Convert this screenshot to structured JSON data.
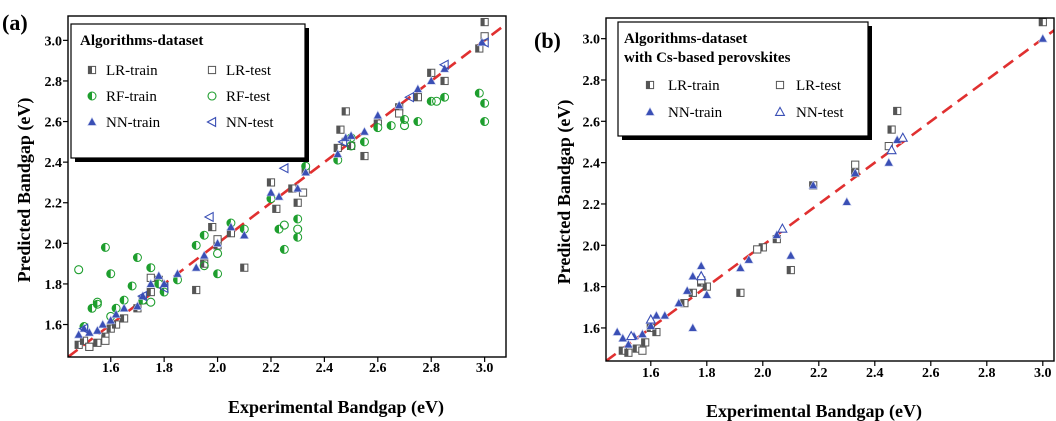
{
  "chart_data": [
    {
      "type": "scatter",
      "panel_label": "(a)",
      "xlabel": "Experimental Bandgap (eV)",
      "ylabel": "Predicted Bandgap (eV)",
      "xlim": [
        1.44,
        3.08
      ],
      "ylim": [
        1.44,
        3.12
      ],
      "xticks": [
        "1.6",
        "1.8",
        "2.0",
        "2.2",
        "2.4",
        "2.6",
        "2.8",
        "3.0"
      ],
      "yticks": [
        "1.6",
        "1.8",
        "2.0",
        "2.2",
        "2.4",
        "2.6",
        "2.8",
        "3.0"
      ],
      "reference_line": "y = x (red dashed)",
      "legend": {
        "title": "Algorithms-dataset",
        "placement": "top-left"
      },
      "series": [
        {
          "name": "LR-train",
          "marker": "half-square",
          "color": "#555555",
          "points": [
            [
              1.48,
              1.5
            ],
            [
              1.5,
              1.52
            ],
            [
              1.52,
              1.49
            ],
            [
              1.55,
              1.51
            ],
            [
              1.58,
              1.54
            ],
            [
              1.6,
              1.58
            ],
            [
              1.62,
              1.6
            ],
            [
              1.65,
              1.63
            ],
            [
              1.7,
              1.68
            ],
            [
              1.72,
              1.72
            ],
            [
              1.75,
              1.76
            ],
            [
              1.78,
              1.82
            ],
            [
              1.8,
              1.78
            ],
            [
              1.92,
              1.77
            ],
            [
              1.95,
              1.9
            ],
            [
              1.98,
              2.08
            ],
            [
              2.0,
              1.99
            ],
            [
              2.05,
              2.05
            ],
            [
              2.1,
              1.88
            ],
            [
              2.2,
              2.3
            ],
            [
              2.22,
              2.17
            ],
            [
              2.28,
              2.27
            ],
            [
              2.3,
              2.2
            ],
            [
              2.33,
              2.36
            ],
            [
              2.45,
              2.47
            ],
            [
              2.46,
              2.56
            ],
            [
              2.48,
              2.65
            ],
            [
              2.5,
              2.48
            ],
            [
              2.55,
              2.43
            ],
            [
              2.6,
              2.59
            ],
            [
              2.68,
              2.67
            ],
            [
              2.75,
              2.72
            ],
            [
              2.8,
              2.84
            ],
            [
              2.85,
              2.8
            ],
            [
              2.98,
              2.96
            ],
            [
              3.0,
              3.09
            ]
          ]
        },
        {
          "name": "LR-test",
          "marker": "open-square",
          "color": "#555555",
          "points": [
            [
              1.52,
              1.49
            ],
            [
              1.58,
              1.52
            ],
            [
              1.75,
              1.83
            ],
            [
              1.8,
              1.79
            ],
            [
              2.0,
              2.02
            ],
            [
              2.32,
              2.25
            ],
            [
              2.48,
              2.5
            ],
            [
              2.68,
              2.64
            ],
            [
              3.0,
              3.02
            ]
          ]
        },
        {
          "name": "RF-train",
          "marker": "half-circle",
          "color": "#1e9e2e",
          "points": [
            [
              1.5,
              1.59
            ],
            [
              1.53,
              1.68
            ],
            [
              1.55,
              1.7
            ],
            [
              1.58,
              1.98
            ],
            [
              1.6,
              1.85
            ],
            [
              1.62,
              1.68
            ],
            [
              1.65,
              1.72
            ],
            [
              1.68,
              1.79
            ],
            [
              1.7,
              1.93
            ],
            [
              1.72,
              1.72
            ],
            [
              1.75,
              1.88
            ],
            [
              1.78,
              1.8
            ],
            [
              1.8,
              1.76
            ],
            [
              1.85,
              1.82
            ],
            [
              1.92,
              1.99
            ],
            [
              1.95,
              2.04
            ],
            [
              2.0,
              1.85
            ],
            [
              2.05,
              2.1
            ],
            [
              2.1,
              2.07
            ],
            [
              2.2,
              2.22
            ],
            [
              2.23,
              2.07
            ],
            [
              2.25,
              1.97
            ],
            [
              2.3,
              2.03
            ],
            [
              2.3,
              2.12
            ],
            [
              2.33,
              2.38
            ],
            [
              2.45,
              2.41
            ],
            [
              2.5,
              2.52
            ],
            [
              2.55,
              2.5
            ],
            [
              2.6,
              2.57
            ],
            [
              2.65,
              2.58
            ],
            [
              2.7,
              2.61
            ],
            [
              2.75,
              2.6
            ],
            [
              2.8,
              2.7
            ],
            [
              2.85,
              2.72
            ],
            [
              2.98,
              2.74
            ],
            [
              3.0,
              2.6
            ],
            [
              3.0,
              2.69
            ]
          ]
        },
        {
          "name": "RF-test",
          "marker": "open-circle",
          "color": "#1e9e2e",
          "points": [
            [
              1.48,
              1.87
            ],
            [
              1.55,
              1.71
            ],
            [
              1.6,
              1.64
            ],
            [
              1.75,
              1.71
            ],
            [
              1.95,
              1.89
            ],
            [
              2.0,
              1.95
            ],
            [
              2.25,
              2.09
            ],
            [
              2.3,
              2.07
            ],
            [
              2.5,
              2.48
            ],
            [
              2.7,
              2.58
            ],
            [
              2.82,
              2.7
            ]
          ]
        },
        {
          "name": "NN-train",
          "marker": "filled-triangle",
          "color": "#3a4fb5",
          "points": [
            [
              1.48,
              1.55
            ],
            [
              1.5,
              1.58
            ],
            [
              1.52,
              1.56
            ],
            [
              1.55,
              1.57
            ],
            [
              1.57,
              1.6
            ],
            [
              1.6,
              1.62
            ],
            [
              1.62,
              1.65
            ],
            [
              1.65,
              1.68
            ],
            [
              1.7,
              1.69
            ],
            [
              1.72,
              1.74
            ],
            [
              1.75,
              1.8
            ],
            [
              1.78,
              1.84
            ],
            [
              1.8,
              1.8
            ],
            [
              1.85,
              1.85
            ],
            [
              1.92,
              1.88
            ],
            [
              1.95,
              1.94
            ],
            [
              2.0,
              2.0
            ],
            [
              2.05,
              2.08
            ],
            [
              2.1,
              2.04
            ],
            [
              2.2,
              2.25
            ],
            [
              2.23,
              2.23
            ],
            [
              2.3,
              2.27
            ],
            [
              2.33,
              2.35
            ],
            [
              2.45,
              2.44
            ],
            [
              2.48,
              2.52
            ],
            [
              2.5,
              2.53
            ],
            [
              2.55,
              2.55
            ],
            [
              2.6,
              2.63
            ],
            [
              2.68,
              2.68
            ],
            [
              2.75,
              2.76
            ],
            [
              2.8,
              2.8
            ],
            [
              2.85,
              2.86
            ],
            [
              2.99,
              2.99
            ]
          ]
        },
        {
          "name": "NN-test",
          "marker": "open-triangle-left",
          "color": "#3a4fb5",
          "points": [
            [
              1.5,
              1.58
            ],
            [
              1.72,
              1.74
            ],
            [
              1.8,
              1.78
            ],
            [
              1.97,
              2.13
            ],
            [
              2.25,
              2.37
            ],
            [
              2.47,
              2.5
            ],
            [
              2.72,
              2.72
            ],
            [
              2.85,
              2.88
            ],
            [
              3.0,
              2.99
            ]
          ]
        }
      ]
    },
    {
      "type": "scatter",
      "panel_label": "(b)",
      "xlabel": "Experimental Bandgap (eV)",
      "ylabel": "Predicted Bandgap (eV)",
      "xlim": [
        1.44,
        3.04
      ],
      "ylim": [
        1.44,
        3.1
      ],
      "xticks": [
        "1.6",
        "1.8",
        "2.0",
        "2.2",
        "2.4",
        "2.6",
        "2.8",
        "3.0"
      ],
      "yticks": [
        "1.6",
        "1.8",
        "2.0",
        "2.2",
        "2.4",
        "2.6",
        "2.8",
        "3.0"
      ],
      "reference_line": "y = x (red dashed)",
      "legend": {
        "title_lines": [
          "Algorithms-dataset",
          "with Cs-based perovskites"
        ],
        "placement": "top-left"
      },
      "series": [
        {
          "name": "LR-train",
          "marker": "half-square",
          "color": "#555555",
          "points": [
            [
              1.5,
              1.49
            ],
            [
              1.52,
              1.48
            ],
            [
              1.55,
              1.5
            ],
            [
              1.58,
              1.53
            ],
            [
              1.6,
              1.6
            ],
            [
              1.62,
              1.58
            ],
            [
              1.72,
              1.72
            ],
            [
              1.75,
              1.77
            ],
            [
              1.78,
              1.82
            ],
            [
              1.8,
              1.8
            ],
            [
              1.92,
              1.77
            ],
            [
              2.0,
              1.99
            ],
            [
              2.05,
              2.03
            ],
            [
              2.1,
              1.88
            ],
            [
              2.18,
              2.29
            ],
            [
              2.33,
              2.35
            ],
            [
              2.46,
              2.56
            ],
            [
              2.48,
              2.65
            ],
            [
              3.0,
              3.08
            ]
          ]
        },
        {
          "name": "LR-test",
          "marker": "open-square",
          "color": "#555555",
          "points": [
            [
              1.57,
              1.49
            ],
            [
              1.78,
              1.83
            ],
            [
              1.98,
              1.98
            ],
            [
              2.33,
              2.39
            ],
            [
              2.45,
              2.48
            ]
          ]
        },
        {
          "name": "NN-train",
          "marker": "filled-triangle",
          "color": "#3a4fb5",
          "points": [
            [
              1.48,
              1.58
            ],
            [
              1.5,
              1.55
            ],
            [
              1.52,
              1.52
            ],
            [
              1.54,
              1.56
            ],
            [
              1.57,
              1.57
            ],
            [
              1.6,
              1.61
            ],
            [
              1.62,
              1.66
            ],
            [
              1.65,
              1.66
            ],
            [
              1.7,
              1.72
            ],
            [
              1.73,
              1.78
            ],
            [
              1.75,
              1.85
            ],
            [
              1.75,
              1.6
            ],
            [
              1.78,
              1.9
            ],
            [
              1.8,
              1.76
            ],
            [
              1.92,
              1.89
            ],
            [
              1.95,
              1.93
            ],
            [
              2.05,
              2.05
            ],
            [
              2.1,
              1.95
            ],
            [
              2.18,
              2.29
            ],
            [
              2.3,
              2.21
            ],
            [
              2.33,
              2.35
            ],
            [
              2.45,
              2.4
            ],
            [
              2.48,
              2.51
            ],
            [
              3.0,
              3.0
            ]
          ]
        },
        {
          "name": "NN-test",
          "marker": "open-triangle",
          "color": "#3a4fb5",
          "points": [
            [
              1.53,
              1.56
            ],
            [
              1.6,
              1.64
            ],
            [
              1.78,
              1.85
            ],
            [
              2.07,
              2.08
            ],
            [
              2.46,
              2.46
            ],
            [
              2.5,
              2.52
            ]
          ]
        }
      ]
    }
  ]
}
